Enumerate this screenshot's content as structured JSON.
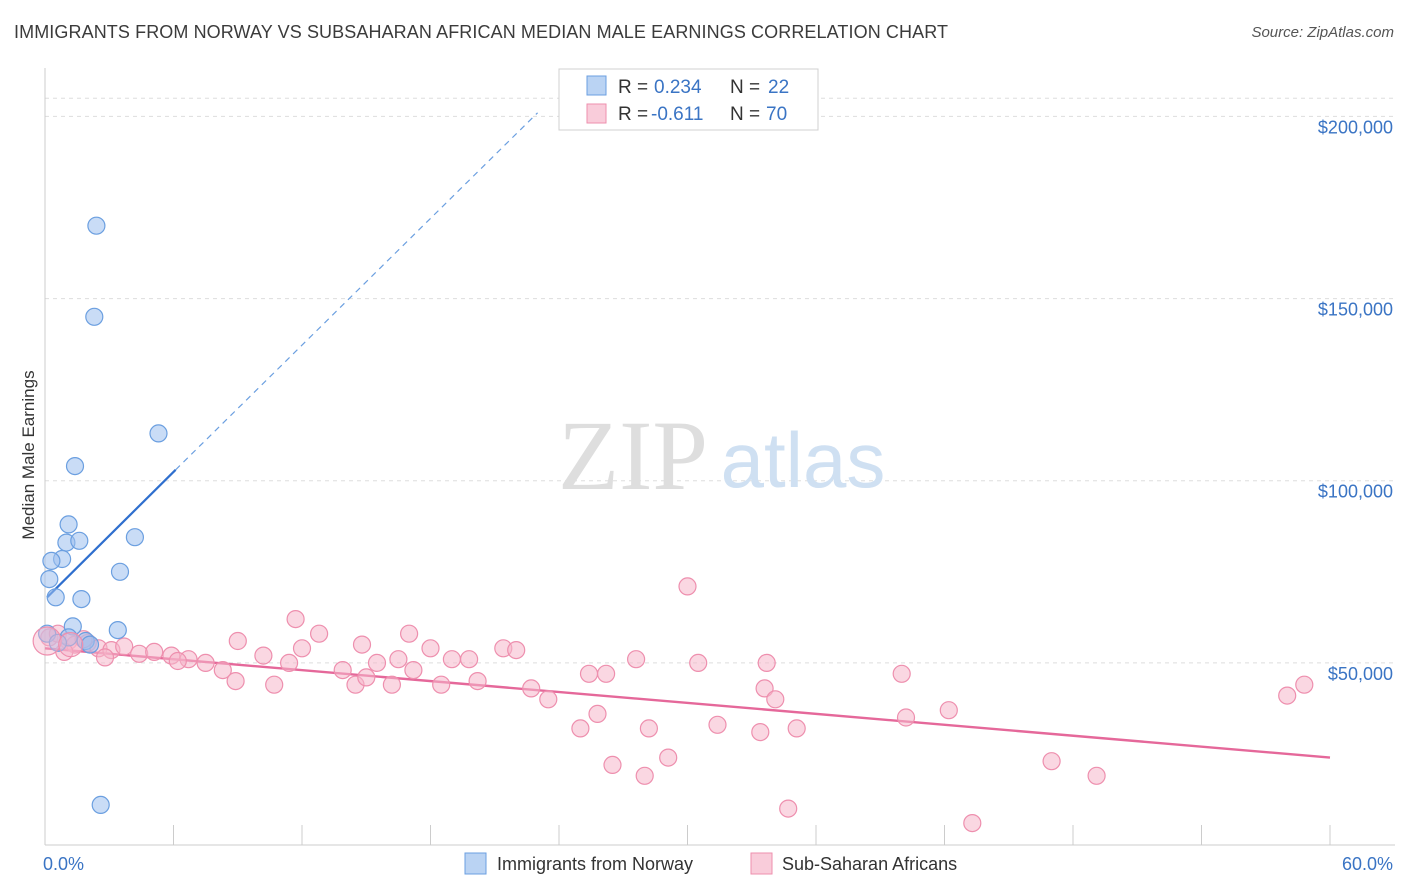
{
  "title": "IMMIGRANTS FROM NORWAY VS SUBSAHARAN AFRICAN MEDIAN MALE EARNINGS CORRELATION CHART",
  "source": "Source: ZipAtlas.com",
  "watermark": {
    "zip": "ZIP",
    "atlas": "atlas"
  },
  "colors": {
    "blue": "#9dc0ee",
    "blue_stroke": "#6b9fe0",
    "blue_line": "#2f6fce",
    "pink": "#f6b6cb",
    "pink_stroke": "#ee8fae",
    "pink_line": "#e5689a",
    "label": "#3a74c4",
    "grid": "#dddddd"
  },
  "legend": {
    "rows": [
      {
        "r_label": "R =",
        "r_value": "0.234",
        "n_label": "N =",
        "n_value": "22"
      },
      {
        "r_label": "R =",
        "r_value": "-0.611",
        "n_label": "N =",
        "n_value": "70"
      }
    ]
  },
  "chart_data": {
    "type": "scatter",
    "xlabel": "",
    "ylabel": "Median Male Earnings",
    "xlim": [
      0,
      60
    ],
    "ylim": [
      0,
      210000
    ],
    "x_tick_labels": [
      "0.0%",
      "60.0%"
    ],
    "y_ticks": [
      {
        "value": 50000,
        "label": "$50,000"
      },
      {
        "value": 100000,
        "label": "$100,000"
      },
      {
        "value": 150000,
        "label": "$150,000"
      },
      {
        "value": 200000,
        "label": "$200,000"
      }
    ],
    "series": [
      {
        "name": "Immigrants from Norway",
        "color": "blue",
        "points": [
          [
            2.4,
            170000
          ],
          [
            2.3,
            145000
          ],
          [
            5.3,
            113000
          ],
          [
            1.4,
            104000
          ],
          [
            1.1,
            88000
          ],
          [
            1.0,
            83000
          ],
          [
            1.6,
            83500
          ],
          [
            4.2,
            84500
          ],
          [
            0.8,
            78500
          ],
          [
            0.3,
            78000
          ],
          [
            3.5,
            75000
          ],
          [
            0.2,
            73000
          ],
          [
            0.5,
            68000
          ],
          [
            1.7,
            67500
          ],
          [
            1.3,
            60000
          ],
          [
            3.4,
            59000
          ],
          [
            0.1,
            58000
          ],
          [
            1.1,
            57000
          ],
          [
            1.9,
            56000
          ],
          [
            0.6,
            55500
          ],
          [
            2.1,
            55000
          ],
          [
            2.6,
            11000
          ]
        ],
        "trend": {
          "x0": 0.1,
          "y0": 68000,
          "x1": 6.1,
          "y1": 103000,
          "x_dash_end": 23,
          "y_dash_end": 201000
        }
      },
      {
        "name": "Sub-Saharan Africans",
        "color": "pink",
        "points": [
          [
            0.2,
            57000
          ],
          [
            0.6,
            58000
          ],
          [
            1.1,
            56000
          ],
          [
            1.4,
            55000
          ],
          [
            2.0,
            55500
          ],
          [
            2.5,
            54000
          ],
          [
            3.1,
            53500
          ],
          [
            3.7,
            54500
          ],
          [
            4.4,
            52500
          ],
          [
            5.1,
            53000
          ],
          [
            5.9,
            52000
          ],
          [
            6.7,
            51000
          ],
          [
            7.5,
            50000
          ],
          [
            8.3,
            48000
          ],
          [
            8.9,
            45000
          ],
          [
            9.0,
            56000
          ],
          [
            10.2,
            52000
          ],
          [
            10.7,
            44000
          ],
          [
            11.4,
            50000
          ],
          [
            12.0,
            54000
          ],
          [
            11.7,
            62000
          ],
          [
            12.8,
            58000
          ],
          [
            13.9,
            48000
          ],
          [
            14.5,
            44000
          ],
          [
            14.8,
            55000
          ],
          [
            15.5,
            50000
          ],
          [
            16.5,
            51000
          ],
          [
            16.2,
            44000
          ],
          [
            17.2,
            48000
          ],
          [
            17.0,
            58000
          ],
          [
            18.0,
            54000
          ],
          [
            18.5,
            44000
          ],
          [
            19.0,
            51000
          ],
          [
            19.8,
            51000
          ],
          [
            20.2,
            45000
          ],
          [
            21.4,
            54000
          ],
          [
            22.0,
            53500
          ],
          [
            22.7,
            43000
          ],
          [
            23.5,
            40000
          ],
          [
            25.4,
            47000
          ],
          [
            25.0,
            32000
          ],
          [
            25.8,
            36000
          ],
          [
            26.2,
            47000
          ],
          [
            26.5,
            22000
          ],
          [
            27.6,
            51000
          ],
          [
            28.0,
            19000
          ],
          [
            28.2,
            32000
          ],
          [
            29.1,
            24000
          ],
          [
            30.0,
            71000
          ],
          [
            30.5,
            50000
          ],
          [
            31.4,
            33000
          ],
          [
            33.4,
            31000
          ],
          [
            33.6,
            43000
          ],
          [
            33.7,
            50000
          ],
          [
            34.1,
            40000
          ],
          [
            34.7,
            10000
          ],
          [
            35.1,
            32000
          ],
          [
            40.0,
            47000
          ],
          [
            40.2,
            35000
          ],
          [
            42.2,
            37000
          ],
          [
            43.3,
            6000
          ],
          [
            47.0,
            23000
          ],
          [
            49.1,
            19000
          ],
          [
            58.0,
            41000
          ],
          [
            58.8,
            44000
          ],
          [
            0.9,
            53000
          ],
          [
            1.8,
            56500
          ],
          [
            2.8,
            51500
          ],
          [
            6.2,
            50500
          ],
          [
            15.0,
            46000
          ]
        ],
        "trend": {
          "x0": 0,
          "y0": 54000,
          "x1": 60,
          "y1": 24000
        }
      }
    ]
  },
  "bottom_legend": [
    {
      "label": "Immigrants from Norway",
      "color": "blue"
    },
    {
      "label": "Sub-Saharan Africans",
      "color": "pink"
    }
  ]
}
